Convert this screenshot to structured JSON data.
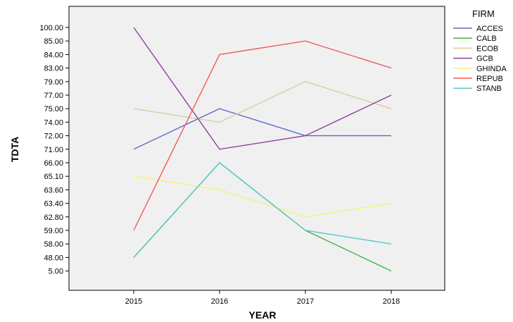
{
  "chart_data": {
    "type": "line",
    "xlabel": "YEAR",
    "ylabel": "TDTA",
    "categories": [
      "2015",
      "2016",
      "2017",
      "2018"
    ],
    "y_categories": [
      "100.00",
      "85.00",
      "84.00",
      "83.00",
      "79.00",
      "77.00",
      "75.00",
      "74.00",
      "72.00",
      "71.00",
      "66.00",
      "65.10",
      "63.60",
      "63.40",
      "62.80",
      "59.00",
      "58.00",
      "48.00",
      "5.00"
    ],
    "legend_title": "FIRM",
    "legend_position": "right",
    "grid": false,
    "plot_background": "#f0f0f0",
    "series": [
      {
        "name": "ACCES",
        "color": "#5b6dc2",
        "values": [
          "71.00",
          "75.00",
          "72.00",
          "72.00"
        ]
      },
      {
        "name": "CALB",
        "color": "#44b24c",
        "values": [
          "48.00",
          "66.00",
          "59.00",
          "5.00"
        ]
      },
      {
        "name": "ECOB",
        "color": "#d4d0a4",
        "values": [
          "75.00",
          "74.00",
          "79.00",
          "75.00"
        ]
      },
      {
        "name": "GCB",
        "color": "#8e3fa0",
        "values": [
          "100.00",
          "71.00",
          "72.00",
          "77.00"
        ]
      },
      {
        "name": "GHINDA",
        "color": "#f2f27a",
        "values": [
          "65.10",
          "63.60",
          "62.80",
          "63.40"
        ]
      },
      {
        "name": "REPUB",
        "color": "#f45a5a",
        "values": [
          "59.00",
          "84.00",
          "85.00",
          "83.00"
        ]
      },
      {
        "name": "STANB",
        "color": "#55c8c8",
        "values": [
          "48.00",
          "66.00",
          "59.00",
          "58.00"
        ]
      }
    ]
  }
}
